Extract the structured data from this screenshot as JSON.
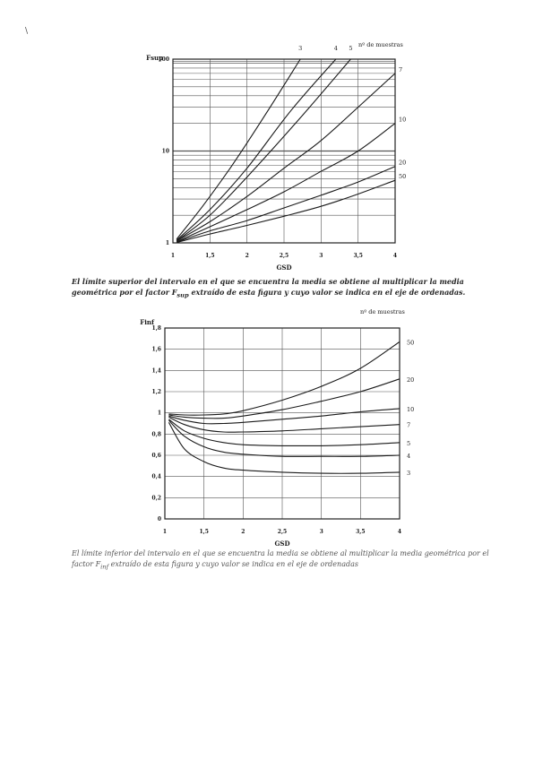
{
  "page": {
    "caption_top": {
      "before": "El límite superior del intervalo en el que se encuentra la media se obtiene al multiplicar la media geométrica por el factor F",
      "sub": "sup",
      "after": " extraído de esta figura y cuyo valor se indica en el eje de ordenadas."
    },
    "caption_bottom": {
      "before": "El límite inferior del intervalo en el que se encuentra la media se obtiene al multiplicar la media geométrica por el factor F",
      "sub": "inf",
      "after": " extraído de esta figura y cuyo valor se indica en el eje de ordenadas"
    },
    "margin_mark": "\\"
  },
  "chart_data": [
    {
      "type": "line",
      "ylabel": "Fsup",
      "xlabel": "GSD",
      "legend_title": "nº de muestras",
      "yscale": "log",
      "xlim": [
        1,
        4
      ],
      "ylim": [
        1,
        100
      ],
      "x_ticks": [
        "1",
        "1,5",
        "2",
        "2,5",
        "3",
        "3,5",
        "4"
      ],
      "y_ticks": [
        "1",
        "10",
        "100"
      ],
      "grid": true,
      "series": [
        {
          "name": "3",
          "x": [
            1.05,
            1.4,
            1.8,
            2.25,
            2.72
          ],
          "y": [
            1.1,
            2.5,
            7,
            25,
            100
          ]
        },
        {
          "name": "4",
          "x": [
            1.05,
            1.5,
            2,
            2.6,
            3.2
          ],
          "y": [
            1.07,
            2.3,
            6.5,
            28,
            100
          ]
        },
        {
          "name": "5",
          "x": [
            1.05,
            1.5,
            2,
            2.7,
            3.4
          ],
          "y": [
            1.05,
            2,
            5.2,
            22,
            100
          ]
        },
        {
          "name": "7",
          "x": [
            1.05,
            1.5,
            2,
            2.5,
            3,
            3.5,
            4
          ],
          "y": [
            1.05,
            1.7,
            3.2,
            6.5,
            13,
            30,
            70
          ]
        },
        {
          "name": "10",
          "x": [
            1.05,
            1.5,
            2,
            2.5,
            3,
            3.5,
            4
          ],
          "y": [
            1.03,
            1.5,
            2.3,
            3.6,
            6,
            10,
            20
          ]
        },
        {
          "name": "20",
          "x": [
            1.05,
            1.5,
            2,
            2.5,
            3,
            3.5,
            4
          ],
          "y": [
            1.02,
            1.35,
            1.75,
            2.4,
            3.3,
            4.6,
            6.8
          ]
        },
        {
          "name": "50",
          "x": [
            1.05,
            1.5,
            2,
            2.5,
            3,
            3.5,
            4
          ],
          "y": [
            1.01,
            1.25,
            1.55,
            1.95,
            2.5,
            3.4,
            4.8
          ]
        }
      ]
    },
    {
      "type": "line",
      "ylabel": "Finf",
      "xlabel": "GSD",
      "legend_title": "nº de muestras",
      "xlim": [
        1,
        4
      ],
      "ylim": [
        0,
        1.8
      ],
      "x_ticks": [
        "1",
        "1,5",
        "2",
        "2,5",
        "3",
        "3,5",
        "4"
      ],
      "y_ticks": [
        "0",
        "0,2",
        "0,4",
        "0,6",
        "0,8",
        "1",
        "1,2",
        "1,4",
        "1,6",
        "1,8"
      ],
      "grid": true,
      "series": [
        {
          "name": "50",
          "x": [
            1.05,
            1.25,
            1.5,
            1.75,
            2,
            2.5,
            3,
            3.5,
            4
          ],
          "y": [
            0.99,
            0.98,
            0.98,
            0.99,
            1.02,
            1.12,
            1.25,
            1.42,
            1.67
          ]
        },
        {
          "name": "20",
          "x": [
            1.05,
            1.25,
            1.5,
            1.75,
            2,
            2.5,
            3,
            3.5,
            4
          ],
          "y": [
            0.98,
            0.96,
            0.95,
            0.95,
            0.97,
            1.03,
            1.11,
            1.2,
            1.32
          ]
        },
        {
          "name": "10",
          "x": [
            1.05,
            1.25,
            1.5,
            1.75,
            2,
            2.5,
            3,
            3.5,
            4
          ],
          "y": [
            0.97,
            0.93,
            0.9,
            0.9,
            0.91,
            0.94,
            0.97,
            1.01,
            1.04
          ]
        },
        {
          "name": "7",
          "x": [
            1.05,
            1.25,
            1.5,
            1.75,
            2,
            2.5,
            3,
            3.5,
            4
          ],
          "y": [
            0.96,
            0.89,
            0.84,
            0.82,
            0.82,
            0.83,
            0.85,
            0.87,
            0.89
          ]
        },
        {
          "name": "5",
          "x": [
            1.05,
            1.25,
            1.5,
            1.75,
            2,
            2.5,
            3,
            3.5,
            4
          ],
          "y": [
            0.94,
            0.83,
            0.76,
            0.72,
            0.7,
            0.69,
            0.69,
            0.7,
            0.72
          ]
        },
        {
          "name": "4",
          "x": [
            1.05,
            1.25,
            1.5,
            1.75,
            2,
            2.5,
            3,
            3.5,
            4
          ],
          "y": [
            0.93,
            0.78,
            0.68,
            0.63,
            0.61,
            0.59,
            0.59,
            0.59,
            0.6
          ]
        },
        {
          "name": "3",
          "x": [
            1.05,
            1.25,
            1.5,
            1.75,
            2,
            2.5,
            3,
            3.5,
            4
          ],
          "y": [
            0.91,
            0.66,
            0.54,
            0.48,
            0.46,
            0.44,
            0.43,
            0.43,
            0.44
          ]
        }
      ]
    }
  ]
}
